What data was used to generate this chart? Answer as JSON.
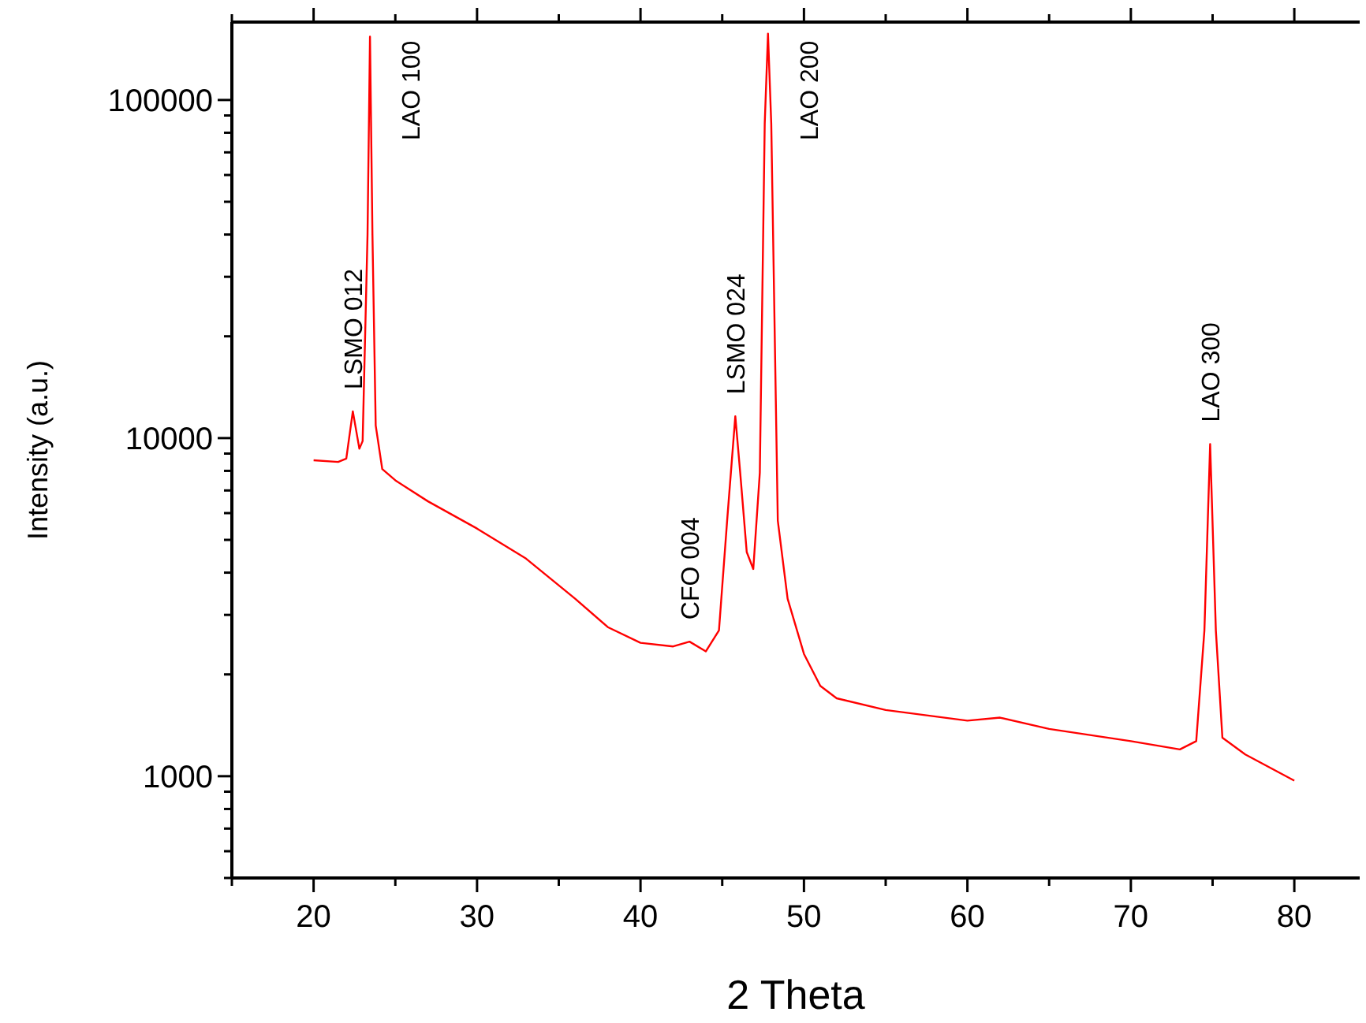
{
  "chart_data": {
    "type": "line",
    "xlabel": "2 Theta",
    "ylabel": "Intensity (a.u.)",
    "log": "y",
    "grid": false,
    "marker": "none",
    "line_style": "solid",
    "xlim": [
      15,
      84
    ],
    "ylim": [
      500,
      170000
    ],
    "xticks": [
      {
        "value": 15,
        "label": null
      },
      20,
      {
        "value": 25,
        "label": null
      },
      30,
      {
        "value": 35,
        "label": null
      },
      40,
      {
        "value": 45,
        "label": null
      },
      50,
      {
        "value": 55,
        "label": null
      },
      60,
      {
        "value": 65,
        "label": null
      },
      70,
      {
        "value": 75,
        "label": null
      },
      80
    ],
    "yticks": [
      {
        "value": 500,
        "label": null
      },
      {
        "value": 600,
        "label": null
      },
      {
        "value": 700,
        "label": null
      },
      {
        "value": 800,
        "label": null
      },
      {
        "value": 900,
        "label": null
      },
      1000,
      {
        "value": 2000,
        "label": null
      },
      {
        "value": 3000,
        "label": null
      },
      {
        "value": 4000,
        "label": null
      },
      {
        "value": 5000,
        "label": null
      },
      {
        "value": 6000,
        "label": null
      },
      {
        "value": 7000,
        "label": null
      },
      {
        "value": 8000,
        "label": null
      },
      {
        "value": 9000,
        "label": null
      },
      10000,
      {
        "value": 20000,
        "label": null
      },
      {
        "value": 30000,
        "label": null
      },
      {
        "value": 40000,
        "label": null
      },
      {
        "value": 50000,
        "label": null
      },
      {
        "value": 60000,
        "label": null
      },
      {
        "value": 70000,
        "label": null
      },
      {
        "value": 80000,
        "label": null
      },
      {
        "value": 90000,
        "label": null
      },
      100000
    ],
    "series": [
      {
        "color": "#ff0000",
        "x": [
          20,
          21.5,
          22,
          22.4,
          22.8,
          23,
          23.3,
          23.45,
          23.6,
          23.8,
          24.2,
          25,
          27,
          30,
          33,
          36,
          38,
          40,
          42,
          43,
          44,
          44.8,
          45.3,
          45.8,
          46.1,
          46.5,
          46.9,
          47.3,
          47.6,
          47.8,
          48,
          48.4,
          49,
          50,
          51,
          52,
          55,
          60,
          62,
          65,
          70,
          73,
          74,
          74.5,
          74.85,
          75.2,
          75.6,
          77,
          80
        ],
        "values": [
          8600,
          8500,
          8700,
          12000,
          9300,
          9800,
          40000,
          154000,
          40000,
          10900,
          8100,
          7500,
          6500,
          5400,
          4400,
          3350,
          2760,
          2480,
          2420,
          2500,
          2340,
          2700,
          5700,
          11600,
          7900,
          4600,
          4100,
          7900,
          85000,
          157000,
          85000,
          5700,
          3350,
          2300,
          1850,
          1700,
          1570,
          1460,
          1490,
          1380,
          1270,
          1200,
          1270,
          2700,
          9600,
          2700,
          1300,
          1160,
          970
        ]
      }
    ],
    "annotations": [
      {
        "text": "LSMO 012",
        "x": 22.4,
        "y": 12000
      },
      {
        "text": "LAO 100",
        "x": 23.45,
        "y": 154000
      },
      {
        "text": "CFO 004",
        "x": 43,
        "y": 2500
      },
      {
        "text": "LSMO 024",
        "x": 45.8,
        "y": 11600
      },
      {
        "text": "LAO 200",
        "x": 47.8,
        "y": 157000
      },
      {
        "text": "LAO 300",
        "x": 74.85,
        "y": 9600
      }
    ]
  }
}
